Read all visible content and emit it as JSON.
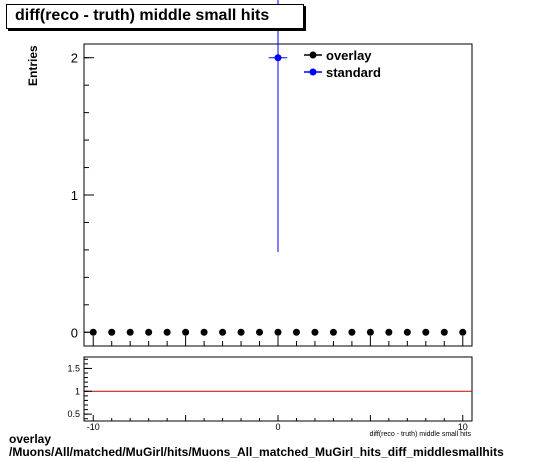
{
  "title": "diff(reco - truth) middle small hits",
  "ylabel": "Entries",
  "xlabel": "diff(reco - truth) middle small hits",
  "caption": {
    "line1": "overlay",
    "line2": "/Muons/All/matched/MuGirl/hits/Muons_All_matched_MuGirl_hits_diff_middlesmallhits"
  },
  "chart_data": [
    {
      "type": "scatter",
      "panel": "main",
      "title": "diff(reco - truth) middle small hits",
      "ylabel": "Entries",
      "xlim": [
        -10.5,
        10.5
      ],
      "ylim": [
        -0.1,
        2.1
      ],
      "yticks": [
        0,
        1,
        2
      ],
      "legend_position": "top-right",
      "series": [
        {
          "name": "overlay",
          "color": "#000000",
          "x": [
            -10,
            -9,
            -8,
            -7,
            -6,
            -5,
            -4,
            -3,
            -2,
            -1,
            0,
            1,
            2,
            3,
            4,
            5,
            6,
            7,
            8,
            9,
            10
          ],
          "y": [
            0,
            0,
            0,
            0,
            0,
            0,
            0,
            0,
            0,
            0,
            0,
            0,
            0,
            0,
            0,
            0,
            0,
            0,
            0,
            0,
            0
          ]
        },
        {
          "name": "standard",
          "color": "#0000ff",
          "x": [
            0
          ],
          "y": [
            2
          ],
          "yerr": [
            1.414
          ]
        }
      ]
    },
    {
      "type": "line",
      "panel": "ratio",
      "xlim": [
        -10.5,
        10.5
      ],
      "ylim": [
        0.35,
        1.75
      ],
      "yticks": [
        0.5,
        1,
        1.5
      ],
      "xticks": [
        -10,
        0,
        10
      ],
      "xlabel": "diff(reco - truth) middle small hits",
      "reference_line": {
        "y": 1,
        "color": "#cc0000"
      }
    }
  ]
}
